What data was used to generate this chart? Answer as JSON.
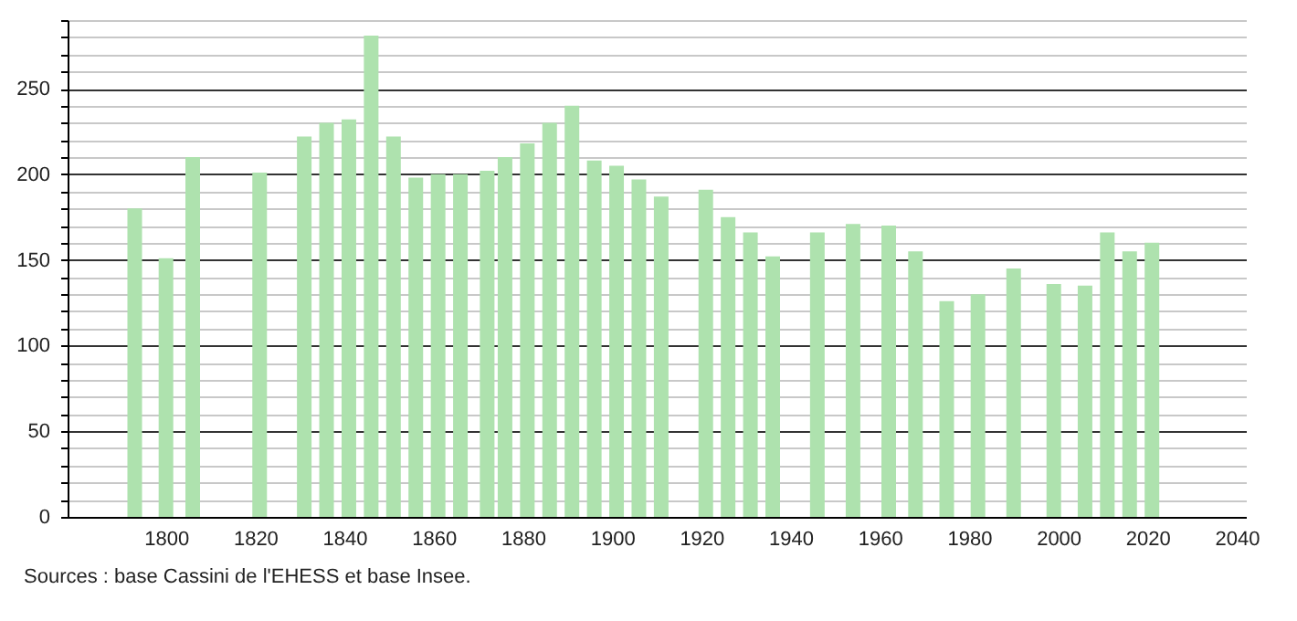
{
  "chart_data": {
    "type": "bar",
    "x": [
      1793,
      1800,
      1806,
      1821,
      1831,
      1836,
      1841,
      1846,
      1851,
      1856,
      1861,
      1866,
      1872,
      1876,
      1881,
      1886,
      1891,
      1896,
      1901,
      1906,
      1911,
      1921,
      1926,
      1931,
      1936,
      1946,
      1954,
      1962,
      1968,
      1975,
      1982,
      1990,
      1999,
      2006,
      2011,
      2016,
      2021
    ],
    "values": [
      180,
      151,
      210,
      201,
      222,
      230,
      232,
      281,
      222,
      198,
      200,
      200,
      202,
      210,
      218,
      230,
      240,
      208,
      205,
      197,
      187,
      191,
      175,
      166,
      152,
      166,
      171,
      170,
      155,
      126,
      130,
      145,
      136,
      135,
      166,
      155,
      160
    ],
    "color": "#aee2ae",
    "xlim": [
      1780,
      2040
    ],
    "xticks": [
      1800,
      1820,
      1840,
      1860,
      1880,
      1900,
      1920,
      1940,
      1960,
      1980,
      2000,
      2020,
      2040
    ],
    "ylim": [
      0,
      290
    ],
    "yticks": [
      0,
      {
        "value": 10,
        "label": null
      },
      {
        "value": 20,
        "label": null
      },
      {
        "value": 30,
        "label": null
      },
      {
        "value": 40,
        "label": null
      },
      50,
      {
        "value": 60,
        "label": null
      },
      {
        "value": 70,
        "label": null
      },
      {
        "value": 80,
        "label": null
      },
      {
        "value": 90,
        "label": null
      },
      100,
      {
        "value": 110,
        "label": null
      },
      {
        "value": 120,
        "label": null
      },
      {
        "value": 130,
        "label": null
      },
      {
        "value": 140,
        "label": null
      },
      150,
      {
        "value": 160,
        "label": null
      },
      {
        "value": 170,
        "label": null
      },
      {
        "value": 180,
        "label": null
      },
      {
        "value": 190,
        "label": null
      },
      200,
      {
        "value": 210,
        "label": null
      },
      {
        "value": 220,
        "label": null
      },
      {
        "value": 230,
        "label": null
      },
      {
        "value": 240,
        "label": null
      },
      250,
      {
        "value": 260,
        "label": null
      },
      {
        "value": 270,
        "label": null
      },
      {
        "value": 280,
        "label": null
      },
      {
        "value": 290,
        "label": null
      }
    ],
    "grid": "y",
    "annotations": [
      "Sources : base Cassini de l'EHESS et base Insee."
    ]
  }
}
